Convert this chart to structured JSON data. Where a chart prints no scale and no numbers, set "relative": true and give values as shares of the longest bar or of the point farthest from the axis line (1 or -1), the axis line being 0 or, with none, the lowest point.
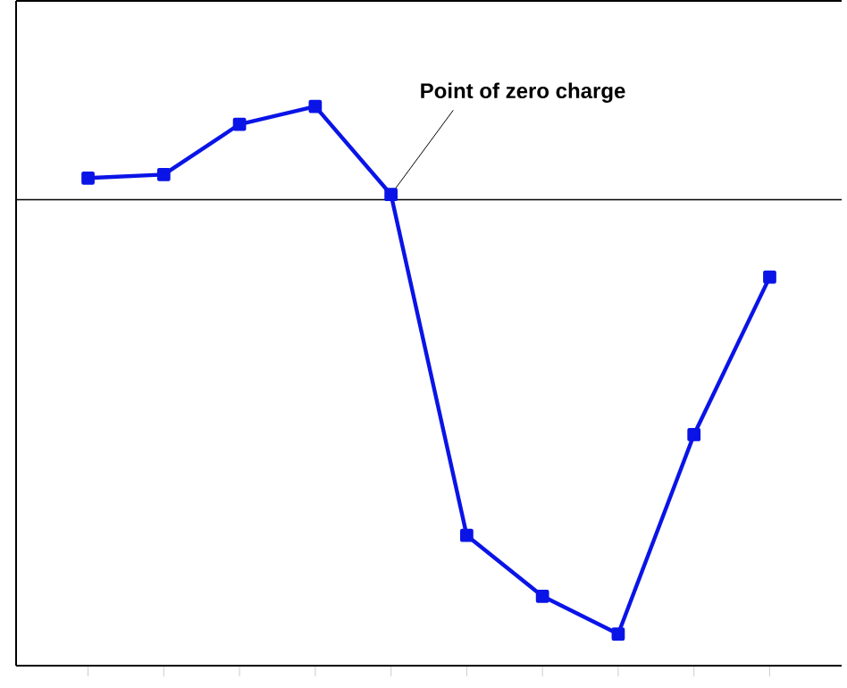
{
  "chart_data": {
    "type": "line",
    "relative": true,
    "categories": [
      null,
      null,
      null,
      null,
      null,
      null,
      null,
      null,
      null,
      null
    ],
    "series": [
      {
        "color": "#0a14e6",
        "values": [
          0.05,
          0.058,
          0.174,
          0.215,
          0.012,
          -0.773,
          -0.913,
          -1,
          -0.541,
          -0.178
        ]
      }
    ],
    "marker": "square",
    "line_style": "solid",
    "ref_lines": [
      {
        "axis": "y",
        "value": 0,
        "color": "#000000"
      }
    ],
    "annotations": [
      "Point of zero charge"
    ]
  }
}
